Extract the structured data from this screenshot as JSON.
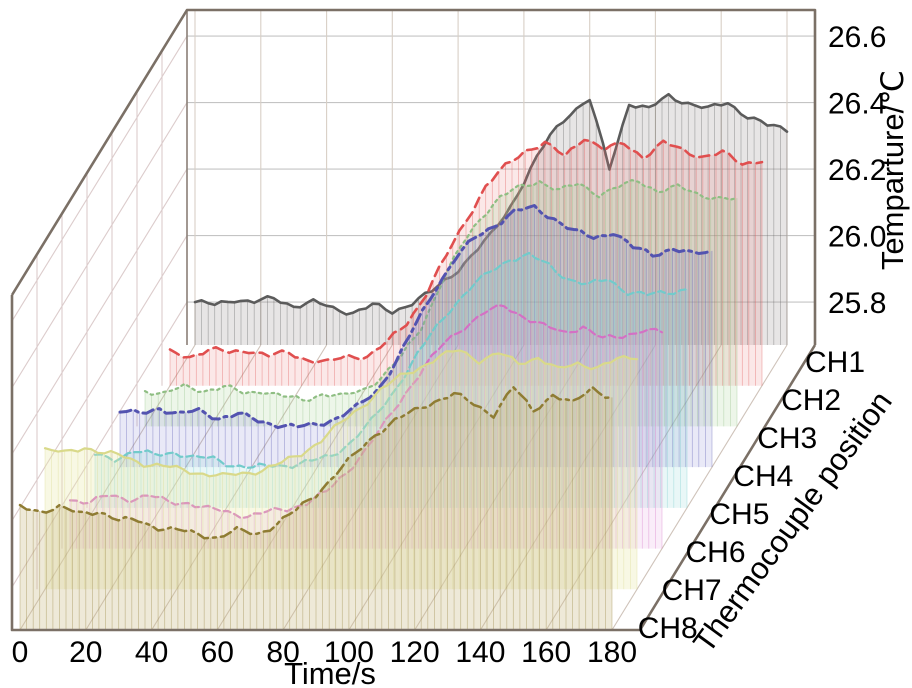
{
  "figure": {
    "background": "#ffffff",
    "frame_color": "#7b7066",
    "grid_back_h_color": "#c4c4c4",
    "grid_back_v_color": "#d8cfc6",
    "grid_left_color": "#dccccc",
    "grid_floor_color": "#cfc3ba"
  },
  "chart_data": {
    "type": "line",
    "variant": "3d-waterfall",
    "title": "",
    "xlabel": "Time/s",
    "ylabel": "Thermocouple position",
    "zlabel": "Temparture/℃",
    "x_ticks": [
      0,
      20,
      40,
      60,
      80,
      100,
      120,
      140,
      160,
      180
    ],
    "x_range": [
      0,
      180
    ],
    "z_ticks": [
      "25.8",
      "26.0",
      "26.2",
      "26.4",
      "26.6"
    ],
    "z_range": [
      25.67,
      26.67
    ],
    "grid": true,
    "legend_position": "none",
    "x": [
      0,
      6,
      12,
      18,
      24,
      30,
      36,
      42,
      48,
      54,
      60,
      66,
      72,
      78,
      84,
      90,
      96,
      102,
      108,
      114,
      120,
      126,
      132,
      138,
      144,
      150,
      156,
      162,
      168,
      174,
      180
    ],
    "series": [
      {
        "name": "CH1",
        "color": "#5b5b5b",
        "fill": "rgba(160,150,150,0.25)",
        "line_style": "solid",
        "width": 2.6,
        "values": [
          25.8,
          25.79,
          25.81,
          25.8,
          25.81,
          25.79,
          25.8,
          25.78,
          25.77,
          25.79,
          25.77,
          25.8,
          25.83,
          25.88,
          25.94,
          26.0,
          26.09,
          26.2,
          26.3,
          26.37,
          26.41,
          26.2,
          26.4,
          26.38,
          26.42,
          26.4,
          26.38,
          26.4,
          26.36,
          26.33,
          26.32
        ]
      },
      {
        "name": "CH2",
        "color": "#e04f4f",
        "fill": "rgba(235,130,130,0.18)",
        "line_style": "dash",
        "width": 2.6,
        "values": [
          25.77,
          25.76,
          25.78,
          25.77,
          25.78,
          25.76,
          25.77,
          25.75,
          25.74,
          25.76,
          25.76,
          25.8,
          25.86,
          25.95,
          26.06,
          26.17,
          26.27,
          26.33,
          26.38,
          26.4,
          26.36,
          26.42,
          26.38,
          26.4,
          26.36,
          26.4,
          26.38,
          26.36,
          26.37,
          26.34,
          26.35
        ]
      },
      {
        "name": "CH3",
        "color": "#8fbe83",
        "fill": "rgba(165,210,145,0.20)",
        "line_style": "dot",
        "width": 2.2,
        "values": [
          25.78,
          25.77,
          25.79,
          25.78,
          25.79,
          25.77,
          25.78,
          25.76,
          25.75,
          25.77,
          25.76,
          25.78,
          25.82,
          25.88,
          25.97,
          26.1,
          26.21,
          26.3,
          26.36,
          26.39,
          26.41,
          26.38,
          26.4,
          26.37,
          26.39,
          26.41,
          26.38,
          26.39,
          26.37,
          26.36,
          26.35
        ]
      },
      {
        "name": "CH4",
        "color": "#5353b0",
        "fill": "rgba(135,135,210,0.18)",
        "line_style": "dashdot",
        "width": 3.0,
        "values": [
          25.84,
          25.83,
          25.85,
          25.83,
          25.84,
          25.82,
          25.83,
          25.81,
          25.8,
          25.79,
          25.8,
          25.82,
          25.85,
          25.9,
          25.99,
          26.1,
          26.21,
          26.3,
          26.36,
          26.4,
          26.44,
          26.45,
          26.42,
          26.38,
          26.36,
          26.38,
          26.33,
          26.31,
          26.33,
          26.31,
          26.32
        ]
      },
      {
        "name": "CH5",
        "color": "#72cbcb",
        "fill": "rgba(145,215,215,0.20)",
        "line_style": "shortdash",
        "width": 2.2,
        "values": [
          25.83,
          25.82,
          25.84,
          25.83,
          25.84,
          25.82,
          25.82,
          25.8,
          25.79,
          25.8,
          25.8,
          25.81,
          25.83,
          25.87,
          25.93,
          26.01,
          26.1,
          26.19,
          26.27,
          26.33,
          26.38,
          26.42,
          26.43,
          26.4,
          26.36,
          26.34,
          26.36,
          26.32,
          26.31,
          26.32,
          26.33
        ]
      },
      {
        "name": "CH6",
        "color": "#d470c4",
        "fill": "rgba(230,155,220,0.18)",
        "line_style": "shortdash",
        "width": 2.2,
        "values": [
          25.82,
          25.81,
          25.83,
          25.82,
          25.83,
          25.81,
          25.81,
          25.79,
          25.78,
          25.77,
          25.78,
          25.79,
          25.81,
          25.84,
          25.9,
          25.97,
          26.05,
          26.14,
          26.22,
          26.29,
          26.34,
          26.38,
          26.4,
          26.37,
          26.34,
          26.32,
          26.34,
          26.3,
          26.31,
          26.33,
          26.32
        ]
      },
      {
        "name": "CH7",
        "color": "#d9d98a",
        "fill": "rgba(232,232,170,0.32)",
        "line_style": "solid",
        "width": 2.2,
        "values": [
          26.09,
          26.08,
          26.1,
          26.08,
          26.07,
          26.05,
          26.04,
          26.03,
          26.02,
          26.01,
          26.02,
          26.03,
          26.05,
          26.08,
          26.12,
          26.17,
          26.22,
          26.27,
          26.31,
          26.34,
          26.37,
          26.39,
          26.36,
          26.38,
          26.35,
          26.37,
          26.33,
          26.35,
          26.34,
          26.36,
          26.37
        ]
      },
      {
        "name": "CH8",
        "color": "#8f7c33",
        "fill": "rgba(205,190,140,0.34)",
        "line_style": "dashdot",
        "width": 2.5,
        "values": [
          26.04,
          26.03,
          26.04,
          26.02,
          26.03,
          26.0,
          26.0,
          25.98,
          25.97,
          25.96,
          25.95,
          25.97,
          25.96,
          25.99,
          26.03,
          26.08,
          26.14,
          26.2,
          26.26,
          26.3,
          26.33,
          26.36,
          26.38,
          26.35,
          26.32,
          26.4,
          26.33,
          26.38,
          26.35,
          26.4,
          26.37
        ]
      }
    ]
  }
}
